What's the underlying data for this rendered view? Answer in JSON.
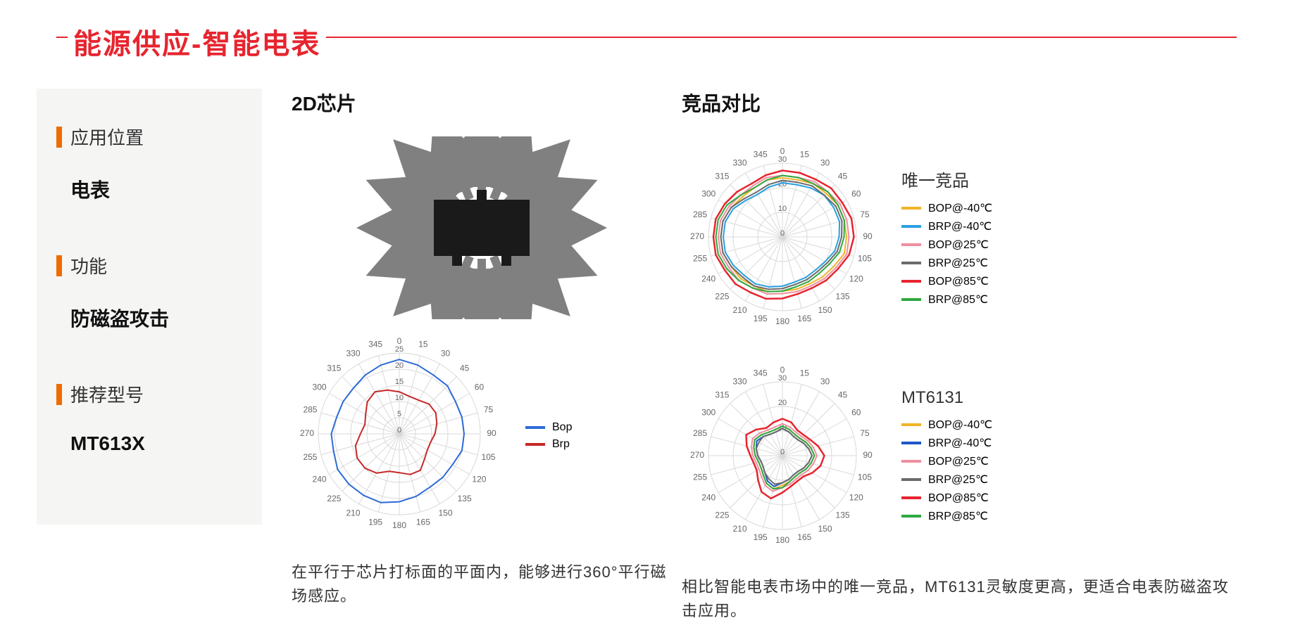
{
  "title": "能源供应-智能电表",
  "accent_color": "#e6252f",
  "sidebar_accent": "#ef6c00",
  "sidebar_bg": "#f5f5f4",
  "sidebar": {
    "items": [
      {
        "label": "应用位置",
        "value": "电表"
      },
      {
        "label": "功能",
        "value": "防磁盗攻击"
      },
      {
        "label": "推荐型号",
        "value": "MT613X"
      }
    ]
  },
  "mid": {
    "title": "2D芯片",
    "caption": "在平行于芯片打标面的平面内，能够进行360°平行磁场感应。",
    "chip": {
      "arrow_color": "#808080",
      "body_color": "#1a1a1a",
      "arrow_count": 16
    },
    "radar": {
      "type": "radar",
      "size": 230,
      "angles_deg": [
        0,
        15,
        30,
        45,
        60,
        75,
        90,
        105,
        120,
        135,
        150,
        165,
        180,
        195,
        210,
        225,
        240,
        255,
        270,
        285,
        300,
        315,
        330,
        345
      ],
      "angle_label_fontsize": 12,
      "rticks": [
        0,
        5,
        10,
        15,
        20,
        25
      ],
      "rmax": 25,
      "grid_color": "#d9d9d9",
      "tick_label_color": "#666666",
      "series": [
        {
          "name": "Bop",
          "color": "#2e6bd6",
          "width": 2,
          "values": [
            23,
            22,
            21,
            21,
            20,
            20,
            20,
            20,
            19,
            19,
            19,
            20,
            21,
            22,
            22,
            22,
            22,
            21,
            21,
            20,
            20,
            20,
            21,
            22
          ]
        },
        {
          "name": "Brp",
          "color": "#c62828",
          "width": 2,
          "values": [
            13,
            12,
            12,
            13,
            13,
            12,
            11,
            10,
            10,
            11,
            13,
            13,
            12,
            12,
            14,
            15,
            15,
            14,
            12,
            11,
            12,
            14,
            15,
            14
          ]
        }
      ]
    }
  },
  "right": {
    "title": "竞品对比",
    "caption": "相比智能电表市场中的唯一竞品，MT6131灵敏度更高，更适合电表防磁盗攻击应用。",
    "charts": [
      {
        "legend_title": "唯一竞品",
        "type": "radar",
        "size": 210,
        "angles_deg": [
          0,
          15,
          30,
          45,
          60,
          75,
          90,
          105,
          120,
          135,
          150,
          165,
          180,
          195,
          210,
          225,
          240,
          255,
          270,
          285,
          300,
          315,
          330,
          345
        ],
        "rticks": [
          0,
          10,
          20,
          30
        ],
        "rmax": 30,
        "grid_color": "#d9d9d9",
        "series": [
          {
            "name": "BOP@-40℃",
            "color": "#f0b429",
            "width": 2,
            "values": [
              24,
              24,
              25,
              25,
              26,
              26,
              26,
              26,
              24,
              23,
              22,
              22,
              22,
              23,
              23,
              24,
              24,
              25,
              25,
              25,
              24,
              23,
              23,
              24
            ]
          },
          {
            "name": "BRP@-40℃",
            "color": "#2aa0e0",
            "width": 2,
            "values": [
              22,
              22,
              23,
              24,
              24,
              24,
              23,
              22,
              20,
              19,
              19,
              19,
              20,
              21,
              22,
              22,
              23,
              24,
              24,
              24,
              23,
              21,
              20,
              21
            ]
          },
          {
            "name": "BOP@25℃",
            "color": "#ef8ea0",
            "width": 2,
            "values": [
              25,
              25,
              26,
              26,
              27,
              27,
              27,
              27,
              25,
              24,
              23,
              23,
              23,
              24,
              24,
              25,
              25,
              26,
              26,
              26,
              25,
              24,
              24,
              25
            ]
          },
          {
            "name": "BRP@25℃",
            "color": "#6b6b6b",
            "width": 2,
            "values": [
              23,
              23,
              24,
              24,
              25,
              25,
              24,
              23,
              21,
              20,
              20,
              20,
              21,
              22,
              23,
              23,
              24,
              25,
              25,
              25,
              24,
              22,
              21,
              22
            ]
          },
          {
            "name": "BOP@85℃",
            "color": "#e6252f",
            "width": 2.5,
            "values": [
              27,
              27,
              27,
              28,
              28,
              29,
              29,
              28,
              26,
              25,
              24,
              24,
              25,
              26,
              26,
              27,
              27,
              28,
              28,
              28,
              27,
              26,
              25,
              26
            ]
          },
          {
            "name": "BRP@85℃",
            "color": "#2fa83f",
            "width": 2,
            "values": [
              25,
              25,
              25,
              26,
              26,
              26,
              25,
              24,
              22,
              21,
              21,
              21,
              22,
              23,
              24,
              25,
              26,
              27,
              27,
              27,
              26,
              24,
              23,
              24
            ]
          }
        ]
      },
      {
        "legend_title": "MT6131",
        "type": "radar",
        "size": 210,
        "angles_deg": [
          0,
          15,
          30,
          45,
          60,
          75,
          90,
          105,
          120,
          135,
          150,
          165,
          180,
          195,
          210,
          225,
          240,
          255,
          270,
          285,
          300,
          315,
          330,
          345
        ],
        "rticks": [
          0,
          10,
          20,
          30
        ],
        "rmax": 30,
        "grid_color": "#d9d9d9",
        "series": [
          {
            "name": "BOP@-40℃",
            "color": "#f0b429",
            "width": 2,
            "values": [
              12,
              11,
              10,
              10,
              11,
              12,
              13,
              12,
              11,
              10,
              10,
              11,
              12,
              14,
              13,
              11,
              10,
              10,
              11,
              12,
              13,
              12,
              11,
              11
            ]
          },
          {
            "name": "BRP@-40℃",
            "color": "#1e57c7",
            "width": 2,
            "values": [
              11,
              10,
              9,
              9,
              10,
              11,
              12,
              11,
              10,
              9,
              9,
              10,
              11,
              13,
              12,
              10,
              9,
              9,
              10,
              11,
              12,
              11,
              10,
              10
            ]
          },
          {
            "name": "BOP@25℃",
            "color": "#ef8ea0",
            "width": 2,
            "values": [
              13,
              12,
              11,
              11,
              12,
              13,
              14,
              13,
              12,
              11,
              11,
              12,
              13,
              15,
              14,
              12,
              11,
              11,
              12,
              13,
              14,
              13,
              12,
              12
            ]
          },
          {
            "name": "BRP@25℃",
            "color": "#6b6b6b",
            "width": 2,
            "values": [
              11,
              10,
              9,
              9,
              10,
              11,
              12,
              11,
              10,
              9,
              9,
              10,
              11,
              12,
              11,
              10,
              9,
              9,
              10,
              11,
              11,
              11,
              10,
              10
            ]
          },
          {
            "name": "BOP@85℃",
            "color": "#e6252f",
            "width": 2.5,
            "values": [
              15,
              14,
              12,
              12,
              13,
              15,
              17,
              16,
              14,
              12,
              12,
              13,
              15,
              18,
              17,
              14,
              12,
              12,
              13,
              15,
              17,
              15,
              13,
              14
            ]
          },
          {
            "name": "BRP@85℃",
            "color": "#2fa83f",
            "width": 2,
            "values": [
              12,
              11,
              10,
              10,
              11,
              12,
              13,
              12,
              11,
              10,
              10,
              11,
              13,
              14,
              13,
              11,
              10,
              10,
              11,
              12,
              13,
              12,
              11,
              11
            ]
          }
        ]
      }
    ]
  }
}
